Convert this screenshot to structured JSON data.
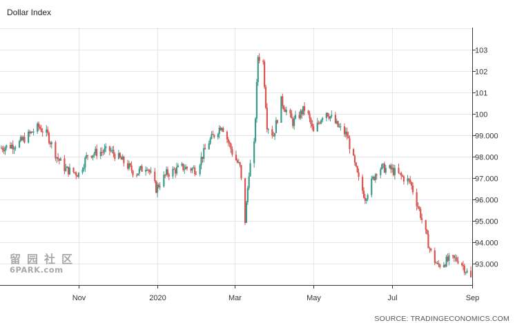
{
  "header": {
    "title": "Dollar Index"
  },
  "footer": {
    "source": "SOURCE: TRADINGECONOMICS.COM"
  },
  "watermark": {
    "line1": "留园社区",
    "line2": "6PARK.com"
  },
  "colors": {
    "up": "#3a9b8b",
    "down": "#d9534f",
    "grid": "#e6e6e6",
    "axis": "#333333"
  },
  "chart_data": {
    "type": "candlestick",
    "title": "Dollar Index",
    "xlabel": "",
    "ylabel": "",
    "ylim": [
      92,
      104
    ],
    "y_ticks": [
      103,
      102,
      101,
      100,
      99,
      98,
      97,
      96,
      95,
      94,
      93
    ],
    "y_tick_labels": [
      "103",
      "102",
      "101",
      "100",
      "99.000",
      "98.000",
      "97.000",
      "96.000",
      "95.000",
      "94.000",
      "93.000"
    ],
    "x_range": [
      "2019-09-01",
      "2020-09-01"
    ],
    "x_ticks": [
      {
        "label": "Nov",
        "date": "2019-11-01"
      },
      {
        "label": "2020",
        "date": "2020-01-01"
      },
      {
        "label": "Mar",
        "date": "2020-03-01"
      },
      {
        "label": "May",
        "date": "2020-05-01"
      },
      {
        "label": "Jul",
        "date": "2020-07-01"
      },
      {
        "label": "Sep",
        "date": "2020-09-01"
      }
    ],
    "grid": true,
    "series": [
      {
        "values": [
          [
            "2019-09-01",
            98.4
          ],
          [
            "2019-09-15",
            98.6
          ],
          [
            "2019-10-01",
            99.4
          ],
          [
            "2019-10-08",
            99.0
          ],
          [
            "2019-10-15",
            98.0
          ],
          [
            "2019-10-22",
            97.4
          ],
          [
            "2019-11-01",
            97.2
          ],
          [
            "2019-11-08",
            98.1
          ],
          [
            "2019-11-15",
            98.2
          ],
          [
            "2019-11-25",
            98.3
          ],
          [
            "2019-12-05",
            97.8
          ],
          [
            "2019-12-15",
            97.2
          ],
          [
            "2019-12-24",
            97.6
          ],
          [
            "2019-12-31",
            96.5
          ],
          [
            "2020-01-08",
            97.2
          ],
          [
            "2020-01-20",
            97.5
          ],
          [
            "2020-01-31",
            97.4
          ],
          [
            "2020-02-10",
            98.7
          ],
          [
            "2020-02-20",
            99.5
          ],
          [
            "2020-02-28",
            98.2
          ],
          [
            "2020-03-05",
            97.5
          ],
          [
            "2020-03-09",
            95.0
          ],
          [
            "2020-03-12",
            97.3
          ],
          [
            "2020-03-16",
            98.5
          ],
          [
            "2020-03-19",
            102.7
          ],
          [
            "2020-03-23",
            102.4
          ],
          [
            "2020-03-26",
            99.5
          ],
          [
            "2020-03-31",
            99.0
          ],
          [
            "2020-04-06",
            100.6
          ],
          [
            "2020-04-15",
            99.6
          ],
          [
            "2020-04-25",
            100.3
          ],
          [
            "2020-05-01",
            99.1
          ],
          [
            "2020-05-10",
            100.2
          ],
          [
            "2020-05-20",
            99.4
          ],
          [
            "2020-05-27",
            99.0
          ],
          [
            "2020-06-05",
            96.9
          ],
          [
            "2020-06-10",
            96.1
          ],
          [
            "2020-06-20",
            97.5
          ],
          [
            "2020-06-30",
            97.4
          ],
          [
            "2020-07-05",
            97.2
          ],
          [
            "2020-07-15",
            96.8
          ],
          [
            "2020-07-22",
            95.5
          ],
          [
            "2020-07-31",
            93.5
          ],
          [
            "2020-08-05",
            92.9
          ],
          [
            "2020-08-15",
            93.2
          ],
          [
            "2020-08-22",
            93.2
          ],
          [
            "2020-08-31",
            92.3
          ]
        ]
      }
    ]
  }
}
